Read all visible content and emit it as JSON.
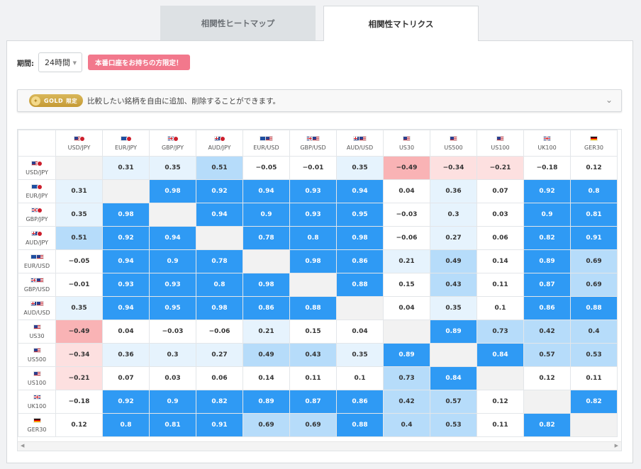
{
  "tabs": [
    {
      "label": "相関性ヒートマップ",
      "active": false
    },
    {
      "label": "相関性マトリクス",
      "active": true
    }
  ],
  "period": {
    "label": "期間:",
    "value": "24時間",
    "badge": "本番口座をお持ちの方限定！"
  },
  "gold": {
    "badge": "GOLD",
    "badge_suffix": "限定",
    "text": "比較したい銘柄を自由に追加、削除することができます。"
  },
  "colors": {
    "strong_positive": "#2f9af4",
    "mid_positive": "#b6dcfa",
    "light_positive": "#e6f3fd",
    "light_negative": "#fde0e0",
    "mid_negative": "#f9b3b5",
    "diagonal": "#f2f2f2"
  },
  "matrix": {
    "symbols": [
      {
        "label": "USD/JPY",
        "flags": [
          "us",
          "jp"
        ]
      },
      {
        "label": "EUR/JPY",
        "flags": [
          "eu",
          "jp"
        ]
      },
      {
        "label": "GBP/JPY",
        "flags": [
          "gb",
          "jp"
        ]
      },
      {
        "label": "AUD/JPY",
        "flags": [
          "au",
          "jp"
        ]
      },
      {
        "label": "EUR/USD",
        "flags": [
          "eu",
          "us"
        ]
      },
      {
        "label": "GBP/USD",
        "flags": [
          "gb",
          "us"
        ]
      },
      {
        "label": "AUD/USD",
        "flags": [
          "au",
          "us"
        ]
      },
      {
        "label": "US30",
        "flags": [
          "us"
        ]
      },
      {
        "label": "US500",
        "flags": [
          "us"
        ]
      },
      {
        "label": "US100",
        "flags": [
          "us"
        ]
      },
      {
        "label": "UK100",
        "flags": [
          "gb"
        ]
      },
      {
        "label": "GER30",
        "flags": [
          "de"
        ]
      }
    ],
    "values": [
      [
        null,
        0.31,
        0.35,
        0.51,
        -0.05,
        -0.01,
        0.35,
        -0.49,
        -0.34,
        -0.21,
        -0.18,
        0.12
      ],
      [
        0.31,
        null,
        0.98,
        0.92,
        0.94,
        0.93,
        0.94,
        0.04,
        0.36,
        0.07,
        0.92,
        0.8
      ],
      [
        0.35,
        0.98,
        null,
        0.94,
        0.9,
        0.93,
        0.95,
        -0.03,
        0.3,
        0.03,
        0.9,
        0.81
      ],
      [
        0.51,
        0.92,
        0.94,
        null,
        0.78,
        0.8,
        0.98,
        -0.06,
        0.27,
        0.06,
        0.82,
        0.91
      ],
      [
        -0.05,
        0.94,
        0.9,
        0.78,
        null,
        0.98,
        0.86,
        0.21,
        0.49,
        0.14,
        0.89,
        0.69
      ],
      [
        -0.01,
        0.93,
        0.93,
        0.8,
        0.98,
        null,
        0.88,
        0.15,
        0.43,
        0.11,
        0.87,
        0.69
      ],
      [
        0.35,
        0.94,
        0.95,
        0.98,
        0.86,
        0.88,
        null,
        0.04,
        0.35,
        0.1,
        0.86,
        0.88
      ],
      [
        -0.49,
        0.04,
        -0.03,
        -0.06,
        0.21,
        0.15,
        0.04,
        null,
        0.89,
        0.73,
        0.42,
        0.4
      ],
      [
        -0.34,
        0.36,
        0.3,
        0.27,
        0.49,
        0.43,
        0.35,
        0.89,
        null,
        0.84,
        0.57,
        0.53
      ],
      [
        -0.21,
        0.07,
        0.03,
        0.06,
        0.14,
        0.11,
        0.1,
        0.73,
        0.84,
        null,
        0.12,
        0.11
      ],
      [
        -0.18,
        0.92,
        0.9,
        0.82,
        0.89,
        0.87,
        0.86,
        0.42,
        0.57,
        0.12,
        null,
        0.82
      ],
      [
        0.12,
        0.8,
        0.81,
        0.91,
        0.69,
        0.69,
        0.88,
        0.4,
        0.53,
        0.11,
        0.82,
        null
      ]
    ]
  }
}
